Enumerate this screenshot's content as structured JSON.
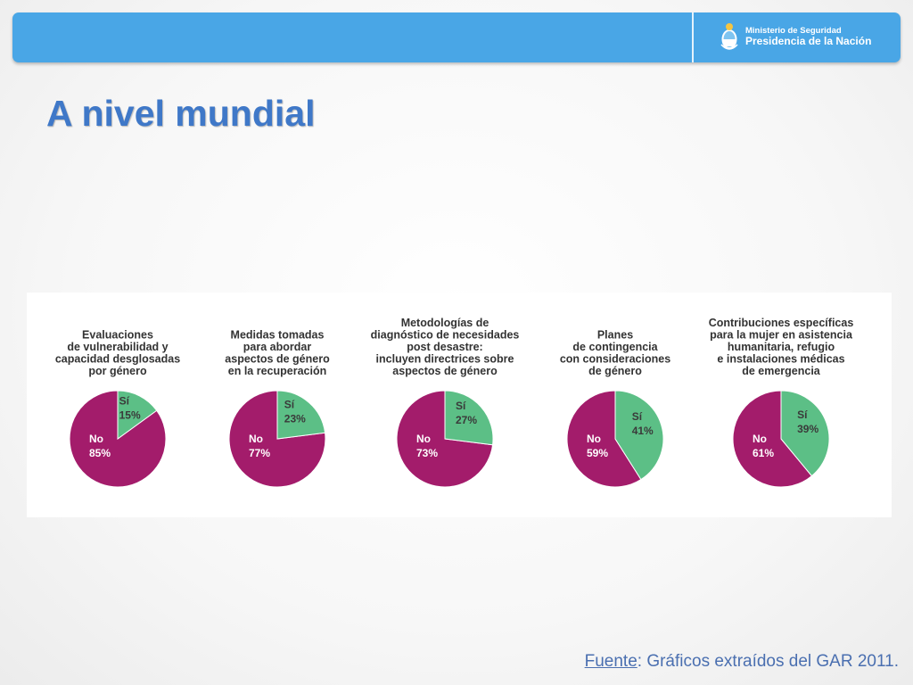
{
  "header": {
    "ministry_line1": "Ministerio de Seguridad",
    "ministry_line2": "Presidencia de la Nación",
    "background_color": "#49a6e6"
  },
  "title": "A nivel mundial",
  "source": {
    "label": "Fuente",
    "text": ": Gráficos extraídos del GAR 2011."
  },
  "colors": {
    "si": "#5cbf86",
    "no": "#a31c6b"
  },
  "chart_data": [
    {
      "type": "pie",
      "title_lines": [
        "Evaluaciones",
        "de vulnerabilidad y",
        "capacidad desglosadas",
        "por género"
      ],
      "slices": [
        {
          "label": "Sí",
          "value": 15,
          "display": "15%"
        },
        {
          "label": "No",
          "value": 85,
          "display": "85%"
        }
      ]
    },
    {
      "type": "pie",
      "title_lines": [
        "Medidas tomadas",
        "para abordar",
        "aspectos de género",
        "en la recuperación"
      ],
      "slices": [
        {
          "label": "Sí",
          "value": 23,
          "display": "23%"
        },
        {
          "label": "No",
          "value": 77,
          "display": "77%"
        }
      ]
    },
    {
      "type": "pie",
      "title_lines": [
        "Metodologías de",
        "diagnóstico de necesidades",
        "post desastre:",
        "incluyen directrices sobre",
        "aspectos de género"
      ],
      "slices": [
        {
          "label": "Sí",
          "value": 27,
          "display": "27%"
        },
        {
          "label": "No",
          "value": 73,
          "display": "73%"
        }
      ]
    },
    {
      "type": "pie",
      "title_lines": [
        "Planes",
        "de contingencia",
        "con consideraciones",
        "de género"
      ],
      "slices": [
        {
          "label": "Sí",
          "value": 41,
          "display": "41%"
        },
        {
          "label": "No",
          "value": 59,
          "display": "59%"
        }
      ]
    },
    {
      "type": "pie",
      "title_lines": [
        "Contribuciones específicas",
        "para la mujer en asistencia",
        "humanitaria, refugio",
        "e instalaciones médicas",
        "de emergencia"
      ],
      "slices": [
        {
          "label": "Sí",
          "value": 39,
          "display": "39%"
        },
        {
          "label": "No",
          "value": 61,
          "display": "61%"
        }
      ]
    }
  ]
}
